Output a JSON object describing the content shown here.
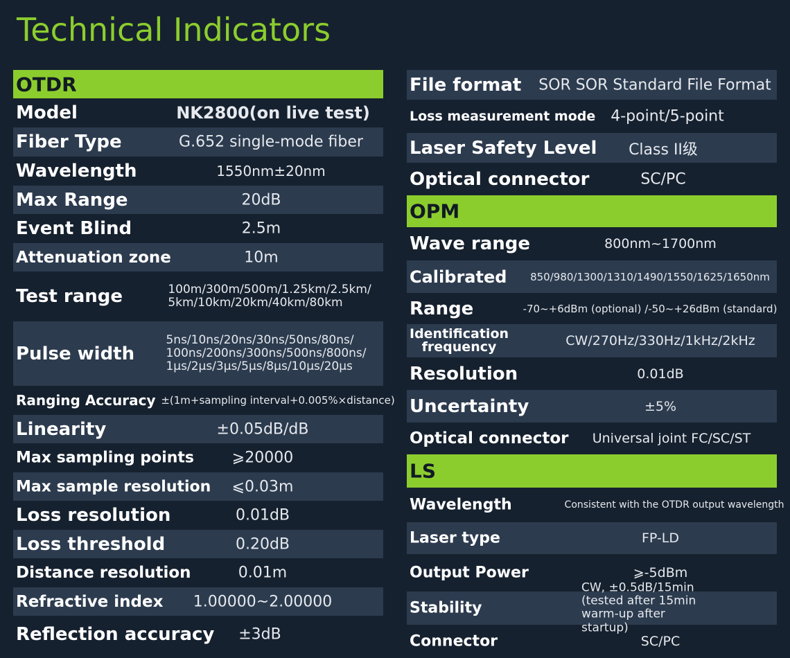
{
  "title": "Technical Indicators",
  "left": {
    "section": "OTDR",
    "rows": [
      {
        "label": "Model",
        "value": "NK2800(on live test)"
      },
      {
        "label": "Fiber Type",
        "value": "G.652 single-mode fiber"
      },
      {
        "label": "Wavelength",
        "value": "1550nm±20nm"
      },
      {
        "label": "Max Range",
        "value": "20dB"
      },
      {
        "label": "Event Blind",
        "value": "2.5m"
      },
      {
        "label": "Attenuation zone",
        "value": "10m"
      },
      {
        "label": "Test range",
        "value": "100m/300m/500m/1.25km/2.5km/\n5km/10km/20km/40km/80km"
      },
      {
        "label": "Pulse width",
        "value": "5ns/10ns/20ns/30ns/50ns/80ns/\n100ns/200ns/300ns/500ns/800ns/\n1μs/2μs/3μs/5μs/8μs/10μs/20μs"
      },
      {
        "label": "Ranging Accuracy",
        "value": "±(1m+sampling interval+0.005%×distance)"
      },
      {
        "label": "Linearity",
        "value": "±0.05dB/dB"
      },
      {
        "label": "Max sampling points",
        "value": "⩾20000"
      },
      {
        "label": "Max sample resolution",
        "value": "⩽0.03m"
      },
      {
        "label": "Loss resolution",
        "value": "0.01dB"
      },
      {
        "label": "Loss threshold",
        "value": "0.20dB"
      },
      {
        "label": "Distance resolution",
        "value": "0.01m"
      },
      {
        "label": "Refractive index",
        "value": "1.00000~2.00000"
      },
      {
        "label": "Reflection accuracy",
        "value": "±3dB"
      }
    ]
  },
  "right": {
    "top_rows": [
      {
        "label": "File format",
        "value": "SOR SOR Standard File Format"
      },
      {
        "label": "Loss measurement mode",
        "value": "4-point/5-point"
      },
      {
        "label": "Laser Safety Level",
        "value": "Class II级"
      },
      {
        "label": "Optical connector",
        "value": "SC/PC"
      }
    ],
    "opm_section": "OPM",
    "opm_rows": [
      {
        "label": "Wave range",
        "value": "800nm~1700nm"
      },
      {
        "label": "Calibrated",
        "value": "850/980/1300/1310/1490/1550/1625/1650nm"
      },
      {
        "label": "Range",
        "value": "-70~+6dBm (optional) /-50~+26dBm (standard)"
      },
      {
        "label": "Identification\nfrequency",
        "value": "CW/270Hz/330Hz/1kHz/2kHz"
      },
      {
        "label": "Resolution",
        "value": "0.01dB"
      },
      {
        "label": "Uncertainty",
        "value": "±5%"
      },
      {
        "label": "Optical connector",
        "value": "Universal joint FC/SC/ST"
      }
    ],
    "ls_section": "LS",
    "ls_rows": [
      {
        "label": "Wavelength",
        "value": "Consistent with the OTDR output wavelength"
      },
      {
        "label": "Laser type",
        "value": "FP-LD"
      },
      {
        "label": "Output Power",
        "value": "⩾-5dBm"
      },
      {
        "label": "Stability",
        "value": "CW, ±0.5dB/15min (tested after 15min\nwarm-up after startup)"
      },
      {
        "label": "Connector",
        "value": "SC/PC"
      }
    ]
  }
}
